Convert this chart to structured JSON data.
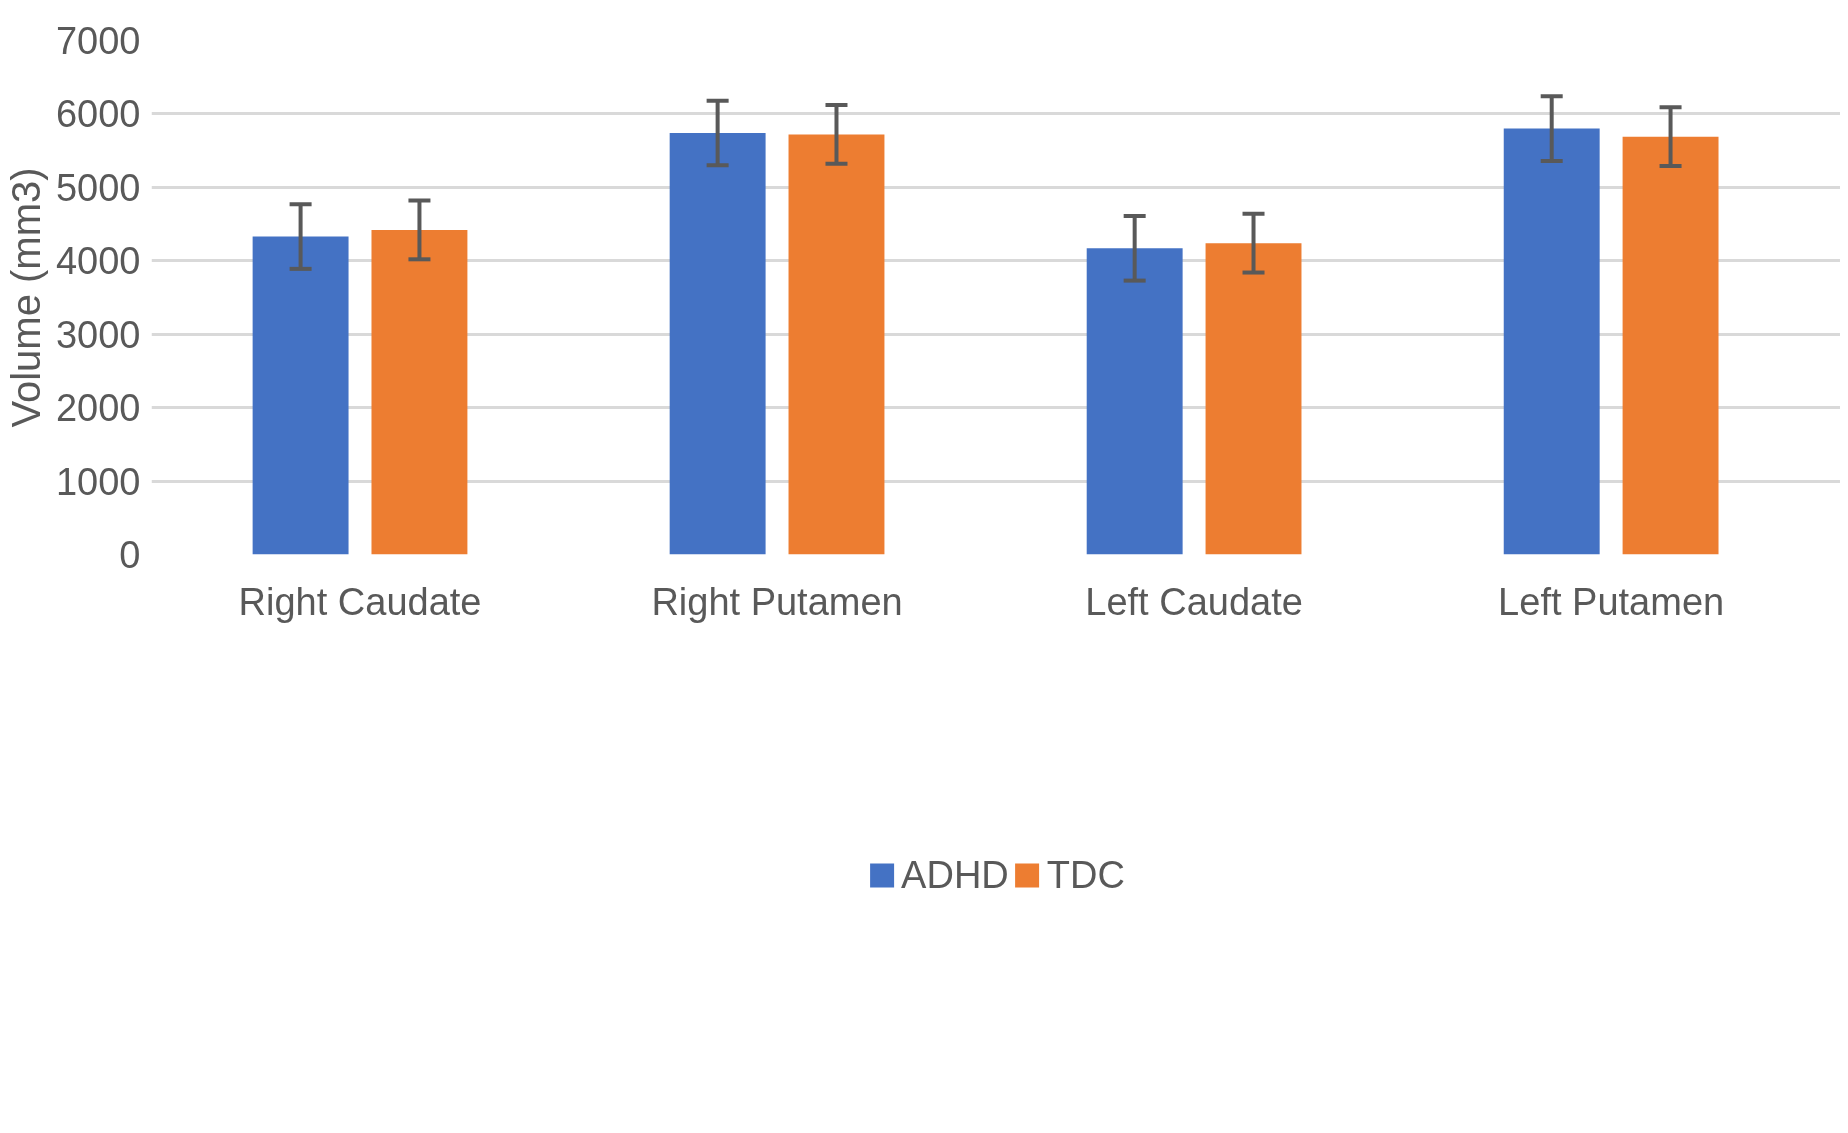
{
  "chart_data": {
    "type": "bar",
    "ylabel": "Volume (mm3)",
    "categories": [
      "Right Caudate",
      "Right Putamen",
      "Left Caudate",
      "Left Putamen"
    ],
    "series": [
      {
        "name": "ADHD",
        "color": "#4472c4",
        "values": [
          4330,
          5740,
          4170,
          5800
        ],
        "errors": [
          440,
          440,
          440,
          440
        ]
      },
      {
        "name": "TDC",
        "color": "#ed7d31",
        "values": [
          4420,
          5720,
          4240,
          5690
        ],
        "errors": [
          400,
          400,
          400,
          400
        ]
      }
    ],
    "ylim": [
      0,
      7000
    ],
    "yticks": [
      0,
      1000,
      2000,
      3000,
      4000,
      5000,
      6000,
      7000
    ],
    "grid": "y",
    "legend": "bottom"
  }
}
